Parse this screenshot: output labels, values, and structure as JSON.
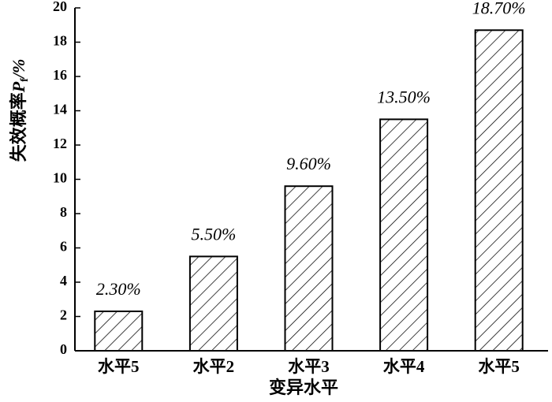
{
  "chart_data": {
    "type": "bar",
    "ylabel": {
      "main": "失效概率",
      "symbol": "P",
      "subscript": "f",
      "unit": "/%"
    },
    "xlabel": "变异水平",
    "categories": [
      "水平5",
      "水平2",
      "水平3",
      "水平4",
      "水平5"
    ],
    "values": [
      2.3,
      5.5,
      9.6,
      13.5,
      18.7
    ],
    "value_labels": [
      "2.30%",
      "5.50%",
      "9.60%",
      "13.50%",
      "18.70%"
    ],
    "color": "#000000",
    "ylim": [
      0,
      20
    ],
    "yticks": [
      0,
      2,
      4,
      6,
      8,
      10,
      12,
      14,
      16,
      18,
      20
    ]
  }
}
